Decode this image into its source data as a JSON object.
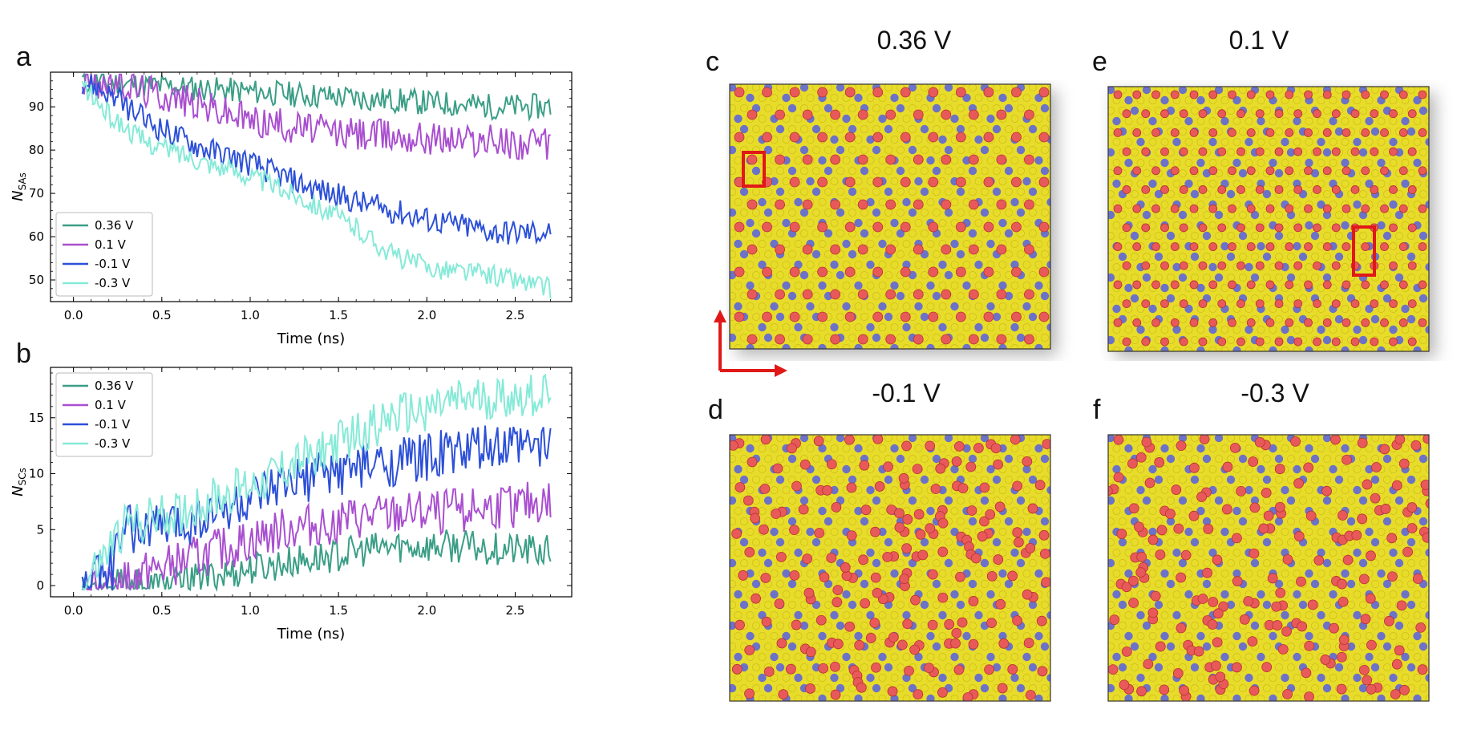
{
  "panels": {
    "a": {
      "letter": "a"
    },
    "b": {
      "letter": "b"
    },
    "c": {
      "letter": "c",
      "title": "0.36 V"
    },
    "d": {
      "letter": "d",
      "title": "-0.1 V"
    },
    "e": {
      "letter": "e",
      "title": "0.1 V"
    },
    "f": {
      "letter": "f",
      "title": "-0.3 V"
    }
  },
  "colors": {
    "s036": "#3a9e86",
    "s01": "#a94fd0",
    "sm01": "#2c50d8",
    "sm03": "#86ead8",
    "sulfur": "#e8dc2a",
    "metal": "#6b72c8",
    "adatom": "#e85a5a",
    "highlight": "#e01818"
  },
  "chart_data": [
    {
      "type": "line",
      "panel": "a",
      "title": "",
      "xlabel": "Time (ns)",
      "ylabel": "N_SAs",
      "xlim": [
        -0.13,
        2.82
      ],
      "ylim": [
        45,
        98
      ],
      "xticks": [
        "0.0",
        "0.5",
        "1.0",
        "1.5",
        "2.0",
        "2.5"
      ],
      "yticks": [
        "50",
        "60",
        "70",
        "80",
        "90"
      ],
      "legend_position": "lower-left",
      "series": [
        {
          "name": "0.36 V",
          "color_key": "s036",
          "anchors": [
            [
              0.05,
              96
            ],
            [
              0.4,
              95
            ],
            [
              0.8,
              94
            ],
            [
              1.2,
              93
            ],
            [
              1.6,
              92
            ],
            [
              2.0,
              91
            ],
            [
              2.4,
              90
            ],
            [
              2.7,
              90
            ]
          ],
          "noise": 3.0
        },
        {
          "name": "0.1 V",
          "color_key": "s01",
          "anchors": [
            [
              0.05,
              96
            ],
            [
              0.3,
              95
            ],
            [
              0.6,
              92
            ],
            [
              1.0,
              87
            ],
            [
              1.5,
              84
            ],
            [
              2.0,
              83
            ],
            [
              2.4,
              82
            ],
            [
              2.7,
              81
            ]
          ],
          "noise": 4.0
        },
        {
          "name": "-0.1 V",
          "color_key": "sm01",
          "anchors": [
            [
              0.05,
              96
            ],
            [
              0.2,
              93
            ],
            [
              0.4,
              87
            ],
            [
              0.7,
              81
            ],
            [
              1.0,
              77
            ],
            [
              1.3,
              72
            ],
            [
              1.6,
              68
            ],
            [
              2.0,
              64
            ],
            [
              2.4,
              61
            ],
            [
              2.7,
              61
            ]
          ],
          "noise": 3.0
        },
        {
          "name": "-0.3 V",
          "color_key": "sm03",
          "anchors": [
            [
              0.05,
              95
            ],
            [
              0.2,
              88
            ],
            [
              0.4,
              82
            ],
            [
              0.7,
              78
            ],
            [
              1.0,
              74
            ],
            [
              1.3,
              69
            ],
            [
              1.6,
              62
            ],
            [
              1.8,
              56
            ],
            [
              2.0,
              53
            ],
            [
              2.4,
              51
            ],
            [
              2.7,
              48
            ]
          ],
          "noise": 2.5
        }
      ]
    },
    {
      "type": "line",
      "panel": "b",
      "title": "",
      "xlabel": "Time (ns)",
      "ylabel": "N_SCs",
      "xlim": [
        -0.13,
        2.82
      ],
      "ylim": [
        -1,
        19.5
      ],
      "xticks": [
        "0.0",
        "0.5",
        "1.0",
        "1.5",
        "2.0",
        "2.5"
      ],
      "yticks": [
        "0",
        "5",
        "10",
        "15"
      ],
      "legend_position": "upper-left",
      "series": [
        {
          "name": "0.36 V",
          "color_key": "s036",
          "anchors": [
            [
              0.05,
              0
            ],
            [
              0.5,
              0
            ],
            [
              0.7,
              0.5
            ],
            [
              1.0,
              1.5
            ],
            [
              1.4,
              2.5
            ],
            [
              1.8,
              3.5
            ],
            [
              2.2,
              3.5
            ],
            [
              2.7,
              3
            ]
          ],
          "noise": 1.5
        },
        {
          "name": "0.1 V",
          "color_key": "s01",
          "anchors": [
            [
              0.05,
              0
            ],
            [
              0.2,
              0
            ],
            [
              0.5,
              1.5
            ],
            [
              0.8,
              3
            ],
            [
              1.2,
              5
            ],
            [
              1.6,
              6
            ],
            [
              2.0,
              6.5
            ],
            [
              2.4,
              7
            ],
            [
              2.7,
              7.5
            ]
          ],
          "noise": 2.0
        },
        {
          "name": "-0.1 V",
          "color_key": "sm01",
          "anchors": [
            [
              0.05,
              0
            ],
            [
              0.2,
              1
            ],
            [
              0.3,
              5
            ],
            [
              0.6,
              5.5
            ],
            [
              1.0,
              7.5
            ],
            [
              1.4,
              10
            ],
            [
              1.8,
              11
            ],
            [
              2.2,
              12
            ],
            [
              2.7,
              12.5
            ]
          ],
          "noise": 2.2
        },
        {
          "name": "-0.3 V",
          "color_key": "sm03",
          "anchors": [
            [
              0.05,
              0
            ],
            [
              0.15,
              2
            ],
            [
              0.3,
              5.5
            ],
            [
              0.6,
              6.5
            ],
            [
              1.0,
              9
            ],
            [
              1.4,
              12
            ],
            [
              1.8,
              15
            ],
            [
              2.2,
              16.5
            ],
            [
              2.7,
              17
            ]
          ],
          "noise": 2.0
        }
      ]
    }
  ]
}
